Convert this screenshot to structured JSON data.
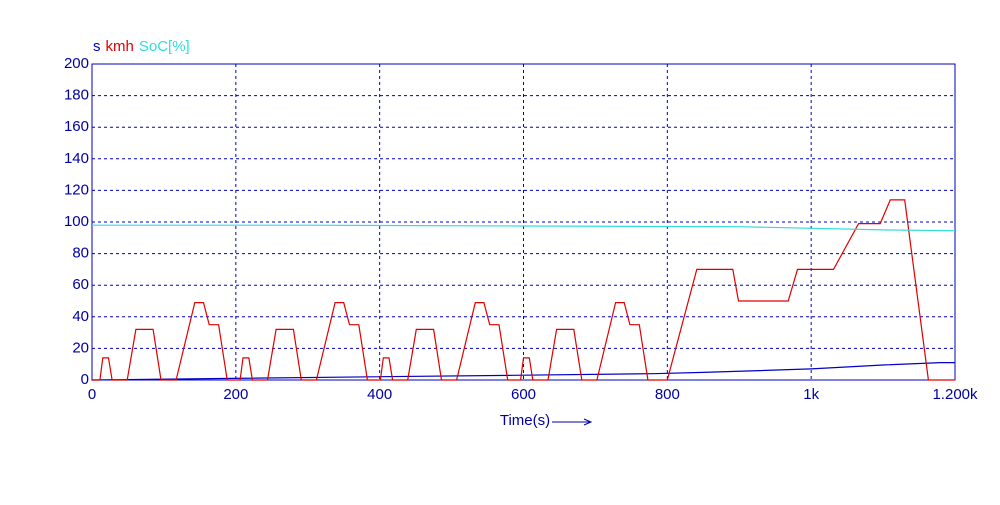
{
  "chart_data": {
    "type": "line",
    "xlabel": "Time(s)",
    "series": [
      {
        "name": "s",
        "color": "#0000c8",
        "x": [
          0,
          195,
          390,
          585,
          780,
          850,
          1000,
          1100,
          1180,
          1200
        ],
        "values": [
          0,
          1,
          2,
          3,
          4,
          4.8,
          7,
          9.5,
          11,
          11
        ]
      },
      {
        "name": "kmh",
        "color": "#e00000",
        "x": [
          0,
          11,
          15,
          23,
          28,
          49,
          61,
          85,
          96,
          117,
          143,
          155,
          163,
          176,
          188,
          195,
          206,
          210,
          218,
          223,
          244,
          256,
          280,
          291,
          312,
          338,
          350,
          358,
          371,
          383,
          390,
          401,
          405,
          413,
          418,
          439,
          451,
          475,
          486,
          507,
          533,
          545,
          553,
          566,
          578,
          585,
          596,
          600,
          608,
          613,
          634,
          646,
          670,
          681,
          702,
          728,
          740,
          748,
          761,
          773,
          780,
          800,
          841,
          891,
          899,
          968,
          981,
          1031,
          1066,
          1096,
          1110,
          1130,
          1163,
          1200
        ],
        "values": [
          0,
          0,
          14,
          14,
          0,
          0,
          32,
          32,
          0,
          0,
          49,
          49,
          35,
          35,
          0,
          0,
          0,
          14,
          14,
          0,
          0,
          32,
          32,
          0,
          0,
          49,
          49,
          35,
          35,
          0,
          0,
          0,
          14,
          14,
          0,
          0,
          32,
          32,
          0,
          0,
          49,
          49,
          35,
          35,
          0,
          0,
          0,
          14,
          14,
          0,
          0,
          32,
          32,
          0,
          0,
          49,
          49,
          35,
          35,
          0,
          0,
          0,
          70,
          70,
          50,
          50,
          70,
          70,
          99,
          99,
          114,
          114,
          0,
          0
        ]
      },
      {
        "name": "SoC[%]",
        "color": "#33dddd",
        "x": [
          0,
          300,
          600,
          900,
          1100,
          1200
        ],
        "values": [
          98,
          98,
          97.5,
          97,
          95,
          94.5
        ]
      }
    ],
    "xlim": [
      0,
      1200
    ],
    "xticks": [
      0,
      200,
      400,
      600,
      800,
      {
        "value": 1000,
        "label": "1k"
      },
      {
        "value": 1200,
        "label": "1.200k"
      }
    ],
    "ylim": [
      0,
      200
    ],
    "yticks": [
      0,
      20,
      40,
      60,
      80,
      100,
      120,
      140,
      160,
      180,
      200
    ],
    "grid": true
  }
}
